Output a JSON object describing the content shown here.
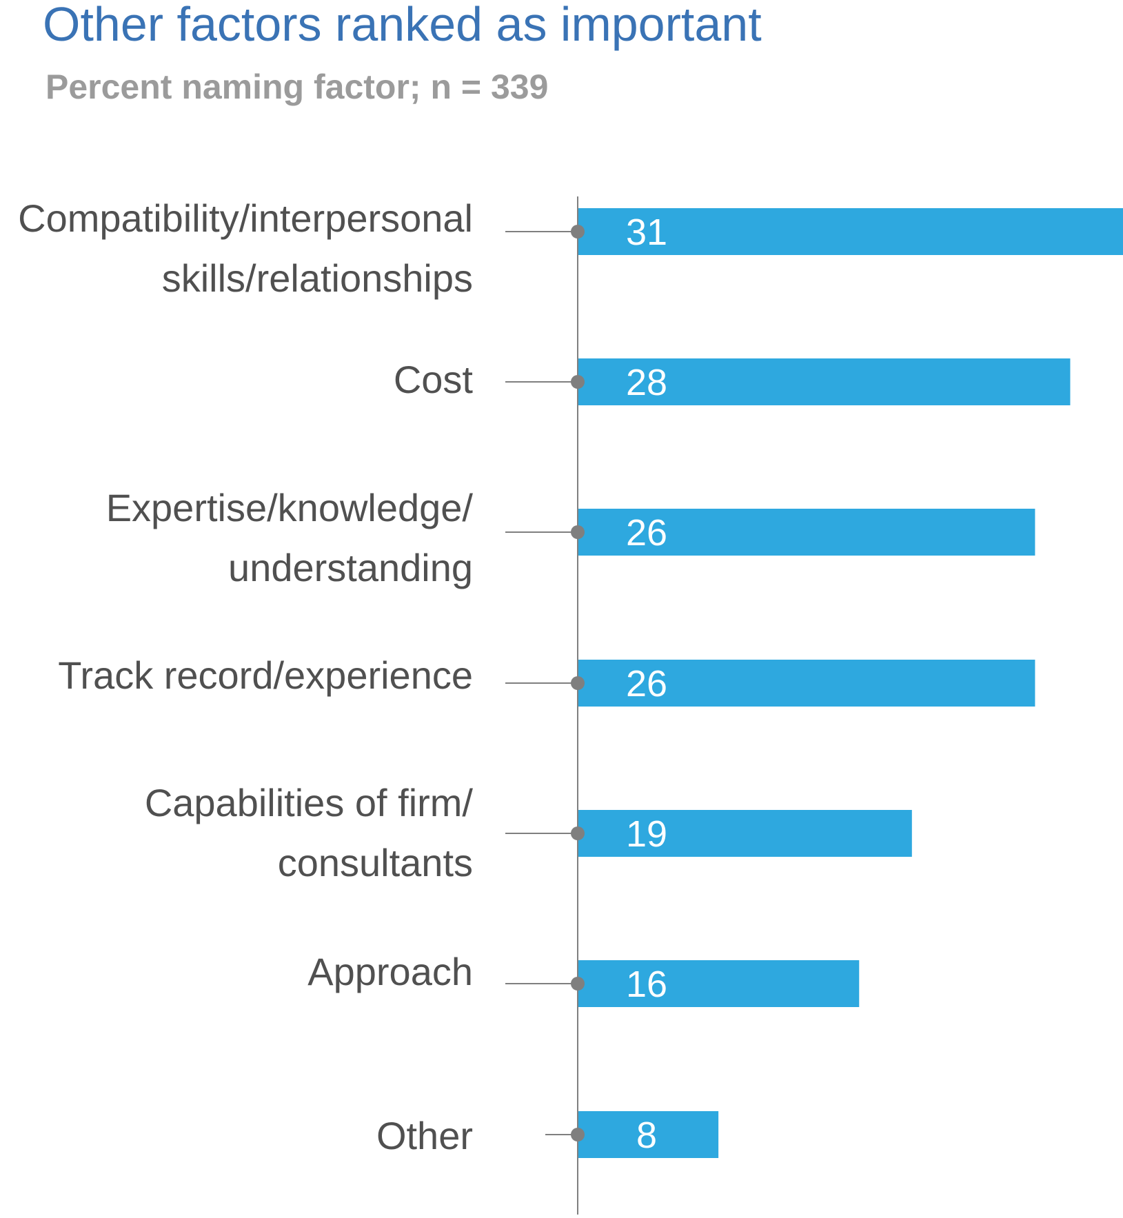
{
  "chart_data": {
    "type": "bar",
    "orientation": "horizontal",
    "title": "Other factors ranked as important",
    "subtitle": "Percent naming factor; n = 339",
    "categories": [
      [
        "Compatibility/interpersonal",
        "skills/relationships"
      ],
      [
        "Cost"
      ],
      [
        "Expertise/knowledge/",
        "understanding"
      ],
      [
        "Track record/experience"
      ],
      [
        "Capabilities of firm/",
        "consultants"
      ],
      [
        "Approach"
      ],
      [
        "Other"
      ]
    ],
    "values": [
      31,
      28,
      26,
      26,
      19,
      16,
      8
    ],
    "xlim": [
      0,
      31
    ],
    "grid": false,
    "legend": "none",
    "colors": {
      "bar": "#2ea8df",
      "axis": "#7f7f7f",
      "title": "#3a73b5",
      "subtitle": "#9b9b9b",
      "label": "#505050",
      "value_text": "#ffffff"
    }
  }
}
